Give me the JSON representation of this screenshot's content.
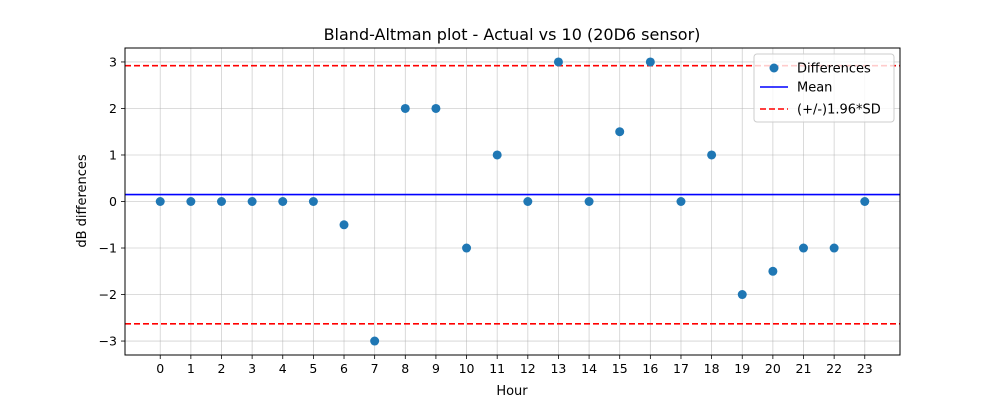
{
  "chart_data": {
    "type": "scatter",
    "title": "Bland-Altman plot - Actual vs 10 (20D6 sensor)",
    "xlabel": "Hour",
    "ylabel": "dB differences",
    "x": [
      0,
      1,
      2,
      3,
      4,
      5,
      6,
      7,
      8,
      9,
      10,
      11,
      12,
      13,
      14,
      15,
      16,
      17,
      18,
      19,
      20,
      21,
      22,
      23
    ],
    "series": [
      {
        "name": "Differences",
        "color": "#1f77b4",
        "values": [
          0,
          0,
          0,
          0,
          0,
          0,
          -0.5,
          -3,
          2,
          2,
          -1,
          1,
          0,
          3,
          0,
          1.5,
          3,
          0,
          1,
          -2,
          -1.5,
          -1,
          -1,
          0
        ]
      }
    ],
    "mean": {
      "name": "Mean",
      "value": 0.15,
      "color": "#0000ff"
    },
    "limits": {
      "name": "(+/-)1.96*SD",
      "upper": 2.92,
      "lower": -2.63,
      "color": "#ff0000"
    },
    "xlim": [
      -1.15,
      24.15
    ],
    "ylim": [
      -3.3,
      3.3
    ],
    "xticks": [
      "0",
      "1",
      "2",
      "3",
      "4",
      "5",
      "6",
      "7",
      "8",
      "9",
      "10",
      "11",
      "12",
      "13",
      "14",
      "15",
      "16",
      "17",
      "18",
      "19",
      "20",
      "21",
      "22",
      "23"
    ],
    "yticks": [
      {
        "value": 3,
        "label": "3"
      },
      {
        "value": 2,
        "label": "2"
      },
      {
        "value": 1,
        "label": "1"
      },
      {
        "value": 0,
        "label": "0"
      },
      {
        "value": -1,
        "label": "−1"
      },
      {
        "value": -2,
        "label": "−2"
      },
      {
        "value": -3,
        "label": "−3"
      }
    ],
    "grid": true,
    "legend_position": "top-right"
  }
}
